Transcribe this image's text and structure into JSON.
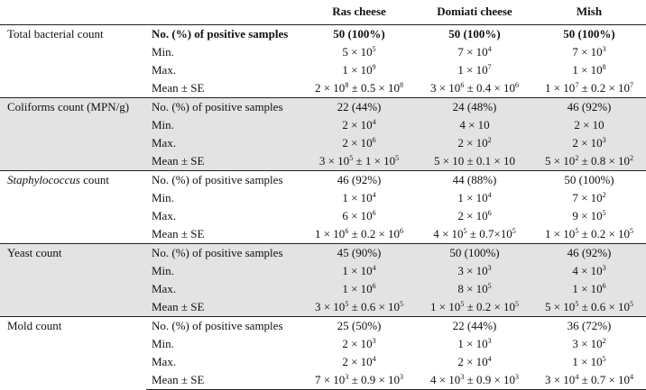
{
  "header": {
    "col0": "",
    "col1": "",
    "ras": "Ras cheese",
    "domiati": "Domiati cheese",
    "mish": "Mish"
  },
  "groups": [
    {
      "name": "Total bacterial count",
      "italic_part": "",
      "rest": "",
      "shaded": false,
      "rows": [
        {
          "label": "No. (%) of positive samples",
          "bold": true,
          "ras": "50 (100%)",
          "domiati": "50 (100%)",
          "mish": "50 (100%)"
        },
        {
          "label": "Min.",
          "bold": false,
          "ras": "5 × 10^5",
          "domiati": "7 × 10^4",
          "mish": "7 × 10^3"
        },
        {
          "label": "Max.",
          "bold": false,
          "ras": "1 × 10^9",
          "domiati": "1 × 10^7",
          "mish": "1 × 10^8"
        },
        {
          "label": "Mean ± SE",
          "bold": false,
          "ras": "2 × 10^8 ± 0.5 × 10^8",
          "domiati": "3 × 10^6 ± 0.4 × 10^6",
          "mish": "1 × 10^7 ± 0.2 × 10^7"
        }
      ]
    },
    {
      "name": "Coliforms count (MPN/g)",
      "italic_part": "",
      "rest": "",
      "shaded": true,
      "rows": [
        {
          "label": "No. (%) of positive samples",
          "bold": false,
          "ras": "22 (44%)",
          "domiati": "24 (48%)",
          "mish": "46 (92%)"
        },
        {
          "label": "Min.",
          "bold": false,
          "ras": "2 × 10^4",
          "domiati": "4 × 10",
          "mish": "2 × 10"
        },
        {
          "label": "Max.",
          "bold": false,
          "ras": "2 × 10^6",
          "domiati": "2 × 10^2",
          "mish": "2 × 10^3"
        },
        {
          "label": "Mean ± SE",
          "bold": false,
          "ras": "3 × 10^5 ± 1 × 10^5",
          "domiati": "5 × 10 ± 0.1 × 10",
          "mish": "5 × 10^2 ± 0.8 × 10^2"
        }
      ]
    },
    {
      "name": "",
      "italic_part": "Staphylococcus",
      "rest": " count",
      "shaded": false,
      "rows": [
        {
          "label": "No. (%) of positive samples",
          "bold": false,
          "ras": "46 (92%)",
          "domiati": "44 (88%)",
          "mish": "50 (100%)"
        },
        {
          "label": "Min.",
          "bold": false,
          "ras": "1 × 10^4",
          "domiati": "1 × 10^4",
          "mish": "7 × 10^2"
        },
        {
          "label": "Max.",
          "bold": false,
          "ras": "6 × 10^6",
          "domiati": "2 × 10^6",
          "mish": "9 × 10^5"
        },
        {
          "label": "Mean ± SE",
          "bold": false,
          "ras": "1 × 10^6 ± 0.2 × 10^6",
          "domiati": "4 × 10^5 ± 0.7×10^5",
          "mish": "1 × 10^5 ± 0.2 × 10^5"
        }
      ]
    },
    {
      "name": "Yeast count",
      "italic_part": "",
      "rest": "",
      "shaded": true,
      "rows": [
        {
          "label": "No. (%) of positive samples",
          "bold": false,
          "ras": "45 (90%)",
          "domiati": "50 (100%)",
          "mish": "46 (92%)"
        },
        {
          "label": "Min.",
          "bold": false,
          "ras": "1 × 10^4",
          "domiati": "3 × 10^3",
          "mish": "4 × 10^3"
        },
        {
          "label": "Max.",
          "bold": false,
          "ras": "1 × 10^6",
          "domiati": "8 × 10^5",
          "mish": "1 × 10^6"
        },
        {
          "label": "Mean ± SE",
          "bold": false,
          "ras": "3 × 10^5 ± 0.6 × 10^5",
          "domiati": "1 × 10^5 ± 0.2 × 10^5",
          "mish": "5 × 10^5 ± 0.6 × 10^5"
        }
      ]
    },
    {
      "name": "Mold count",
      "italic_part": "",
      "rest": "",
      "shaded": false,
      "rows": [
        {
          "label": "No. (%) of positive samples",
          "bold": false,
          "ras": "25 (50%)",
          "domiati": "22 (44%)",
          "mish": "36 (72%)"
        },
        {
          "label": "Min.",
          "bold": false,
          "ras": "2 × 10^3",
          "domiati": "1 × 10^3",
          "mish": "3 × 10^2"
        },
        {
          "label": "Max.",
          "bold": false,
          "ras": "2 × 10^4",
          "domiati": "2 × 10^4",
          "mish": "1 × 10^5"
        },
        {
          "label": "Mean ± SE",
          "bold": false,
          "ras": "7 × 10^3 ± 0.9 × 10^3",
          "domiati": "4 × 10^3 ± 0.9 × 10^3",
          "mish": "3 × 10^4 ± 0.7 × 10^4"
        }
      ]
    }
  ]
}
